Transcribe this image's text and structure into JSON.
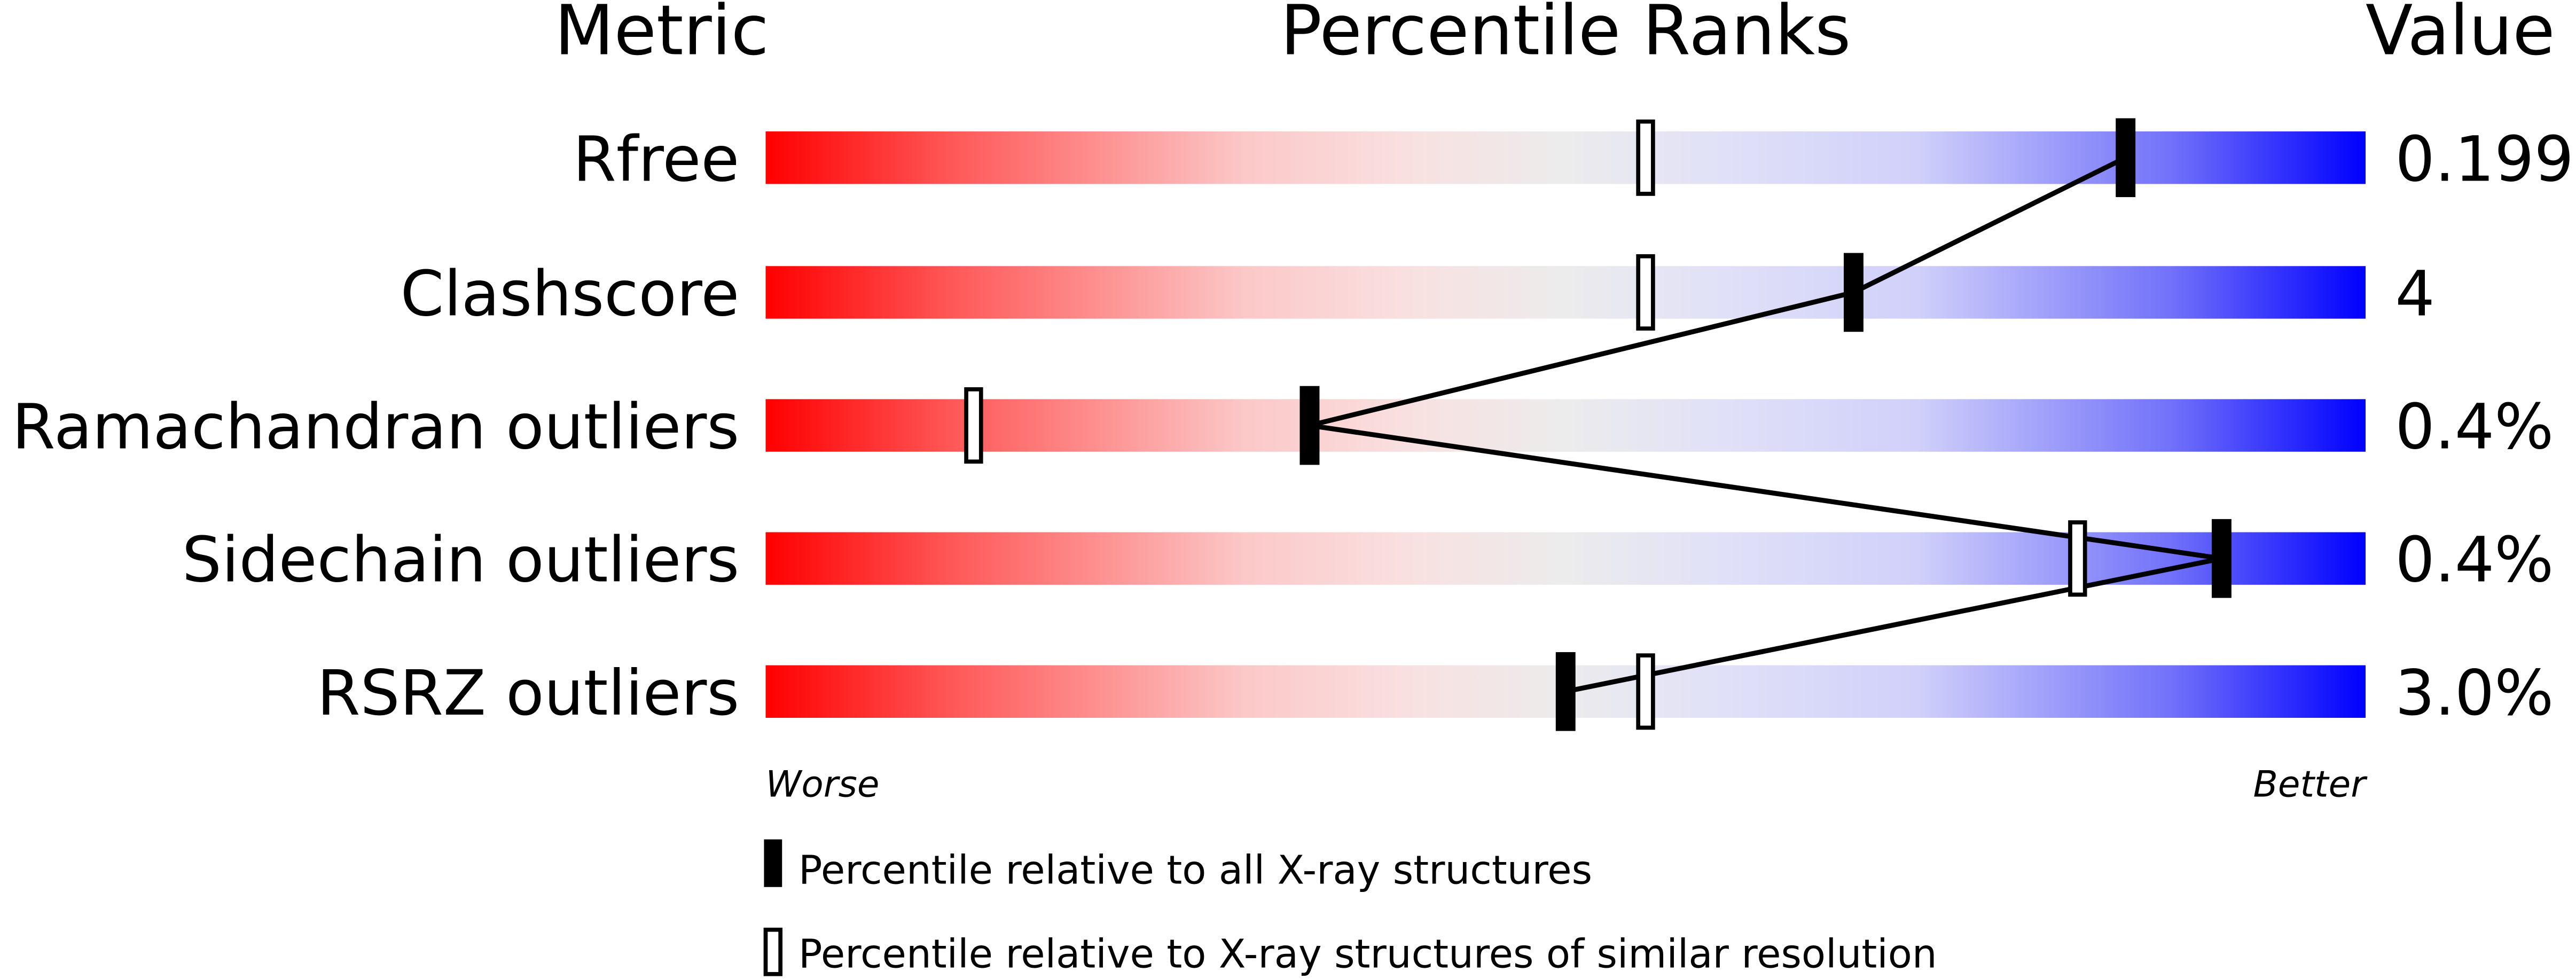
{
  "chart_data": {
    "type": "slider",
    "headers": {
      "metric": "Metric",
      "percentile": "Percentile Ranks",
      "value": "Value"
    },
    "xlim": [
      0,
      100
    ],
    "axis_labels": {
      "left": "Worse",
      "right": "Better"
    },
    "colors": {
      "worse": "#ff0000",
      "middle": "#eeeeee",
      "better": "#0000ff",
      "marker": "#000000"
    },
    "metrics": [
      {
        "name": "Rfree",
        "value": "0.199",
        "percentile_all": 85,
        "percentile_similar": 55
      },
      {
        "name": "Clashscore",
        "value": "4",
        "percentile_all": 68,
        "percentile_similar": 55
      },
      {
        "name": "Ramachandran outliers",
        "value": "0.4%",
        "percentile_all": 34,
        "percentile_similar": 13
      },
      {
        "name": "Sidechain outliers",
        "value": "0.4%",
        "percentile_all": 91,
        "percentile_similar": 82
      },
      {
        "name": "RSRZ outliers",
        "value": "3.0%",
        "percentile_all": 50,
        "percentile_similar": 55
      }
    ],
    "legend": {
      "all": "Percentile relative to all X-ray structures",
      "similar": "Percentile relative to X-ray structures of similar resolution"
    }
  }
}
